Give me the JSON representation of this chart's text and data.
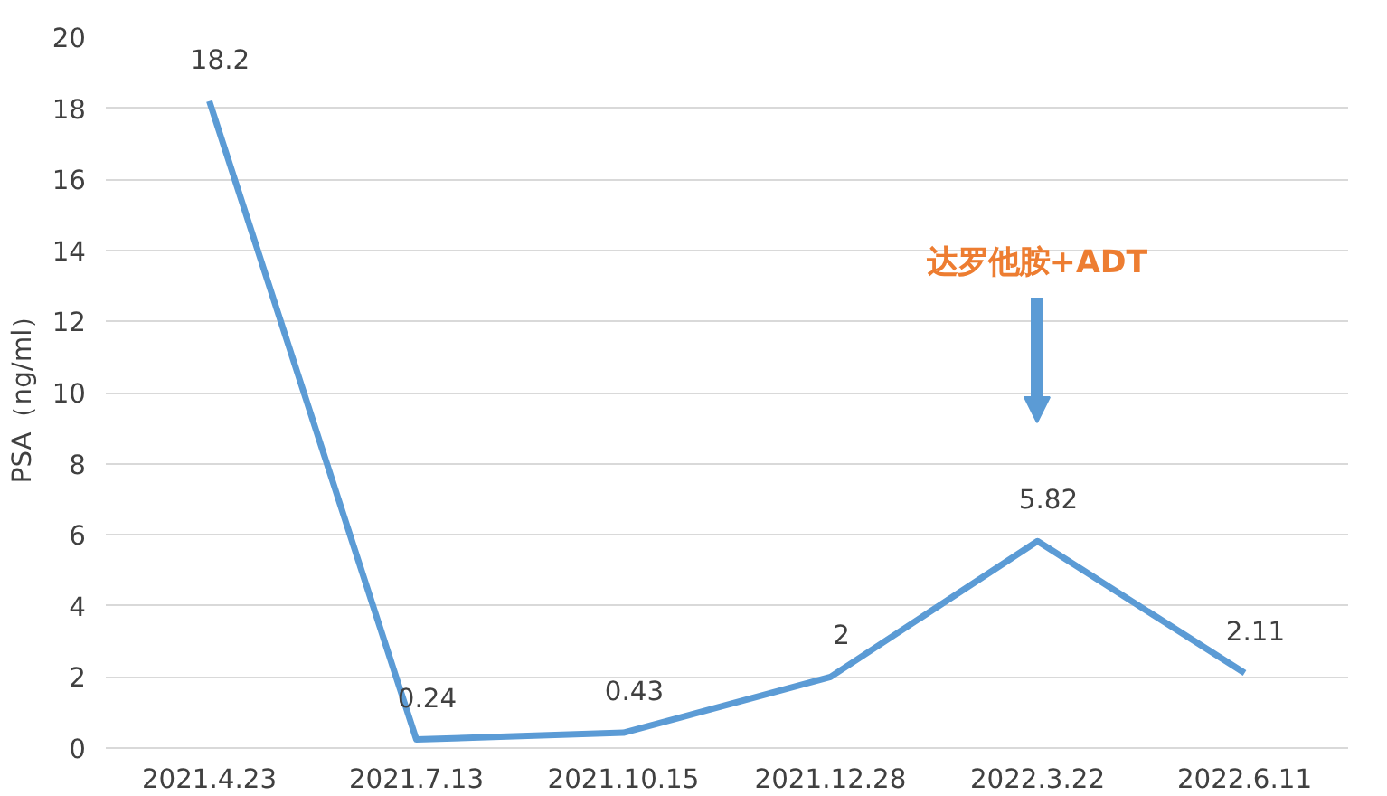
{
  "chart_data": {
    "type": "line",
    "ylabel": "PSA（ng/ml）",
    "categories": [
      "2021.4.23",
      "2021.7.13",
      "2021.10.15",
      "2021.12.28",
      "2022.3.22",
      "2022.6.11"
    ],
    "series": [
      {
        "color": "#5b9bd5",
        "values": [
          18.2,
          0.24,
          0.43,
          2,
          5.82,
          2.11
        ]
      }
    ],
    "ylim": [
      0,
      20
    ],
    "yticks": [
      0,
      2,
      4,
      6,
      8,
      10,
      12,
      14,
      16,
      18,
      20
    ],
    "grid": "y",
    "data_labels": true,
    "marker": "none",
    "line_style": "solid",
    "annotations": [
      "达罗他胺+ADT"
    ]
  }
}
